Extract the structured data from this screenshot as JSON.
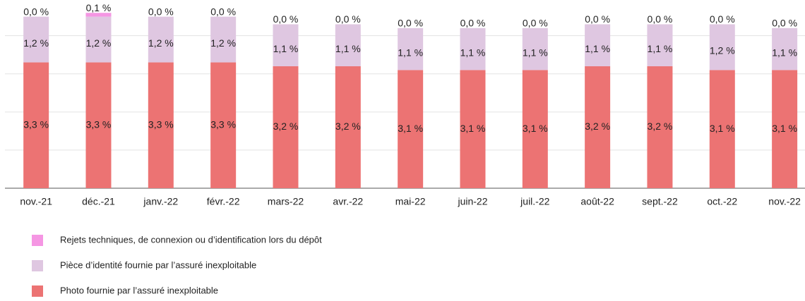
{
  "chart_data": {
    "type": "stacked-bar",
    "categories": [
      "nov.-21",
      "déc.-21",
      "janv.-22",
      "févr.-22",
      "mars-22",
      "avr.-22",
      "mai-22",
      "juin-22",
      "juil.-22",
      "août-22",
      "sept.-22",
      "oct.-22",
      "nov.-22"
    ],
    "series": [
      {
        "name": "Photo fournie par l’assuré inexploitable",
        "color": "#ec7373",
        "values": [
          3.3,
          3.3,
          3.3,
          3.3,
          3.2,
          3.2,
          3.1,
          3.1,
          3.1,
          3.2,
          3.2,
          3.1,
          3.1
        ],
        "value_labels": [
          "3,3 %",
          "3,3 %",
          "3,3 %",
          "3,3 %",
          "3,2 %",
          "3,2 %",
          "3,1 %",
          "3,1 %",
          "3,1 %",
          "3,2 %",
          "3,2 %",
          "3,1 %",
          "3,1 %"
        ]
      },
      {
        "name": "Pièce d’identité fournie par l’assuré inexploitable",
        "color": "#dfc7e1",
        "values": [
          1.2,
          1.2,
          1.2,
          1.2,
          1.1,
          1.1,
          1.1,
          1.1,
          1.1,
          1.1,
          1.1,
          1.2,
          1.1
        ],
        "value_labels": [
          "1,2 %",
          "1,2 %",
          "1,2 %",
          "1,2 %",
          "1,1 %",
          "1,1 %",
          "1,1 %",
          "1,1 %",
          "1,1 %",
          "1,1 %",
          "1,1 %",
          "1,2 %",
          "1,1 %"
        ]
      },
      {
        "name": "Rejets techniques, de connexion ou d’identification lors du dépôt",
        "color": "#f596e3",
        "values": [
          0.0,
          0.1,
          0.0,
          0.0,
          0.0,
          0.0,
          0.0,
          0.0,
          0.0,
          0.0,
          0.0,
          0.0,
          0.0
        ],
        "value_labels": [
          "0,0 %",
          "0,1 %",
          "0,0 %",
          "0,0 %",
          "0,0 %",
          "0,0 %",
          "0,0 %",
          "0,0 %",
          "0,0 %",
          "0,0 %",
          "0,0 %",
          "0,0 %",
          "0,0 %"
        ]
      }
    ],
    "ylim": [
      0,
      4.9
    ],
    "yticks": [
      0,
      1,
      2,
      3,
      4
    ],
    "grid": true
  }
}
